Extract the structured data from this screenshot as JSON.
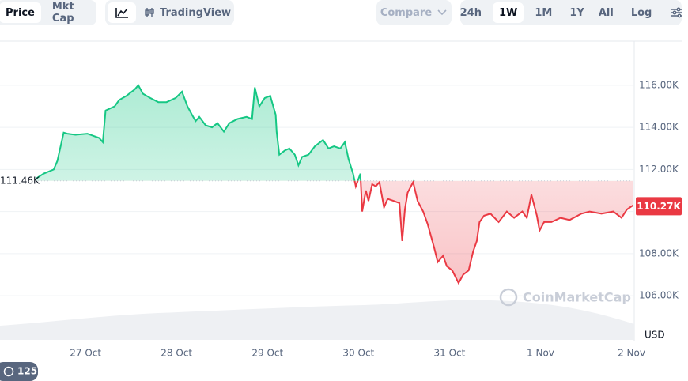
{
  "toolbar": {
    "tabs": [
      "Price",
      "Mkt Cap"
    ],
    "active_tab": 0,
    "view": "TradingView",
    "compare": "Compare",
    "ranges": [
      "24h",
      "1W",
      "1M",
      "1Y",
      "All"
    ],
    "active_range": 1,
    "log": "Log"
  },
  "chart_data": {
    "type": "line",
    "x": [
      -0.94,
      -0.55,
      -0.46,
      -0.35,
      -0.31,
      -0.24,
      -0.2,
      -0.11,
      0.02,
      0.15,
      0.19,
      0.22,
      0.32,
      0.37,
      0.45,
      0.54,
      0.58,
      0.63,
      0.67,
      0.71,
      0.8,
      0.89,
      0.99,
      1.06,
      1.12,
      1.17,
      1.21,
      1.25,
      1.32,
      1.39,
      1.45,
      1.52,
      1.58,
      1.67,
      1.77,
      1.83,
      1.86,
      1.91,
      1.97,
      2.03,
      2.09,
      2.1,
      2.13,
      2.19,
      2.24,
      2.3,
      2.34,
      2.38,
      2.45,
      2.52,
      2.61,
      2.67,
      2.73,
      2.8,
      2.85,
      2.89,
      2.94,
      2.97,
      3.02,
      3.04,
      3.08,
      3.11,
      3.15,
      3.19,
      3.23,
      3.28,
      3.32,
      3.39,
      3.45,
      3.48,
      3.51,
      3.54,
      3.6,
      3.65,
      3.71,
      3.76,
      3.83,
      3.87,
      3.93,
      3.97,
      4.03,
      4.1,
      4.15,
      4.21,
      4.26,
      4.3,
      4.33,
      4.38,
      4.45,
      4.54,
      4.63,
      4.71,
      4.8,
      4.85,
      4.9,
      4.96,
      4.99,
      5.04,
      5.12,
      5.22,
      5.32,
      5.45,
      5.54,
      5.67,
      5.8,
      5.89,
      5.95,
      6.02
    ],
    "series": [
      {
        "name": "Price",
        "color_up": "#16c784",
        "color_down": "#ea3943",
        "values": [
          111650,
          111550,
          111800,
          112000,
          112400,
          113750,
          113700,
          113650,
          113700,
          113500,
          113300,
          114800,
          115000,
          115300,
          115500,
          115800,
          116000,
          115600,
          115500,
          115400,
          115200,
          115200,
          115400,
          115700,
          115000,
          114600,
          114300,
          114500,
          114100,
          114000,
          114200,
          113800,
          114200,
          114400,
          114500,
          114400,
          115900,
          115000,
          115400,
          115500,
          114600,
          113800,
          112700,
          112900,
          113000,
          112700,
          112200,
          112600,
          112700,
          113100,
          113400,
          113000,
          113100,
          113000,
          113300,
          112500,
          111800,
          111200,
          111800,
          110000,
          111000,
          110500,
          111300,
          111200,
          111400,
          110200,
          110600,
          110500,
          110400,
          108600,
          110100,
          110900,
          111400,
          110500,
          110000,
          109400,
          108300,
          107600,
          107900,
          107400,
          107200,
          106600,
          107000,
          107200,
          108100,
          108600,
          109500,
          109800,
          109900,
          109500,
          110000,
          109700,
          110000,
          109700,
          110800,
          109800,
          109100,
          109500,
          109500,
          109700,
          109600,
          109900,
          110000,
          109900,
          110000,
          109700,
          110100,
          110300
        ]
      }
    ],
    "xlim": [
      -0.94,
      6.03
    ],
    "xticks": [
      {
        "value": 0,
        "label": "27 Oct"
      },
      {
        "value": 1,
        "label": "28 Oct"
      },
      {
        "value": 2,
        "label": "29 Oct"
      },
      {
        "value": 3,
        "label": "30 Oct"
      },
      {
        "value": 4,
        "label": "31 Oct"
      },
      {
        "value": 5,
        "label": "1 Nov"
      },
      {
        "value": 6,
        "label": "2 Nov"
      }
    ],
    "ylim": [
      103900,
      118100
    ],
    "yticks": [
      {
        "value": 106000,
        "label": "106.00K"
      },
      {
        "value": 108000,
        "label": "108.00K"
      },
      {
        "value": 110000,
        "label": "110.00K"
      },
      {
        "value": 112000,
        "label": "112.00K"
      },
      {
        "value": 114000,
        "label": "114.00K"
      },
      {
        "value": 116000,
        "label": "116.00K"
      }
    ],
    "grid": true,
    "baseline": {
      "value": 111460,
      "label": "111.46K"
    },
    "current": {
      "value": 110270,
      "label": "110.27K"
    },
    "unit": "USD",
    "watermark": "CoinMarketCap"
  },
  "badge": "125"
}
